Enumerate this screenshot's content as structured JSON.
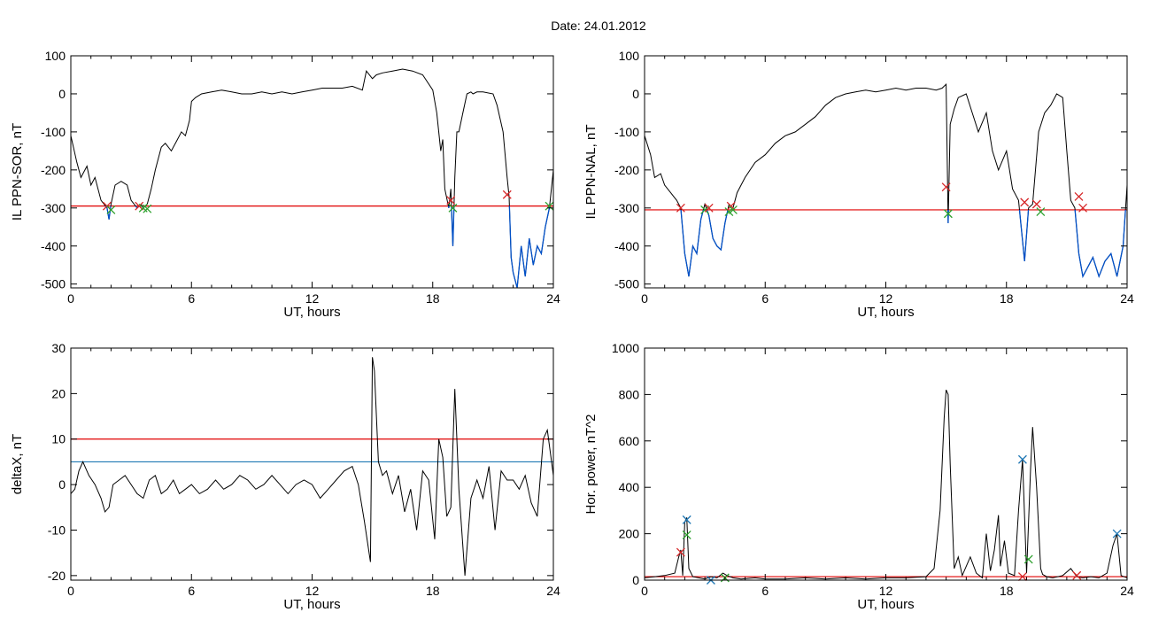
{
  "title": "Date:  24.01.2012",
  "colors": {
    "data_line": "#000000",
    "threshold_red": "#e00000",
    "threshold_blue": "#1f78b4",
    "below_threshold": "#0050c8",
    "marker_red": "#d62728",
    "marker_green": "#2ca02c",
    "marker_blue": "#1f77b4"
  },
  "chart_data": [
    {
      "type": "line",
      "xlabel": "UT, hours",
      "ylabel": "IL PPN-SOR, nT",
      "xlim": [
        0,
        24
      ],
      "ylim": [
        -510,
        100
      ],
      "xticks": [
        0,
        6,
        12,
        18,
        24
      ],
      "yticks": [
        -500,
        -400,
        -300,
        -200,
        -100,
        0,
        100
      ],
      "threshold": -295,
      "series": [
        {
          "x": [
            0,
            0.3,
            0.5,
            0.8,
            1.0,
            1.2,
            1.5,
            1.8,
            1.9,
            2.0,
            2.2,
            2.5,
            2.8,
            3.0,
            3.3,
            3.5,
            3.6,
            3.8,
            4.0,
            4.2,
            4.5,
            4.7,
            5.0,
            5.3,
            5.5,
            5.7,
            5.9,
            6.0,
            6.2,
            6.5,
            7.0,
            7.5,
            8.0,
            8.5,
            9.0,
            9.5,
            10.0,
            10.5,
            11.0,
            11.5,
            12.0,
            12.5,
            13.0,
            13.5,
            14.0,
            14.5,
            14.7,
            15.0,
            15.2,
            15.5,
            16.0,
            16.5,
            17.0,
            17.5,
            18.0,
            18.2,
            18.4,
            18.5,
            18.6,
            18.8,
            18.9,
            19.0,
            19.1,
            19.2,
            19.3,
            19.5,
            19.7,
            19.9,
            20.0,
            20.2,
            20.5,
            21.0,
            21.2,
            21.5,
            21.7,
            21.8,
            21.9,
            22.0,
            22.2,
            22.4,
            22.6,
            22.8,
            23.0,
            23.2,
            23.4,
            23.6,
            23.8,
            24.0
          ],
          "y": [
            -110,
            -180,
            -220,
            -190,
            -240,
            -220,
            -280,
            -300,
            -330,
            -290,
            -240,
            -230,
            -240,
            -280,
            -300,
            -290,
            -300,
            -290,
            -250,
            -200,
            -140,
            -130,
            -150,
            -120,
            -100,
            -110,
            -70,
            -20,
            -10,
            0,
            5,
            10,
            5,
            0,
            0,
            5,
            0,
            5,
            0,
            5,
            10,
            15,
            15,
            15,
            20,
            10,
            60,
            40,
            50,
            55,
            60,
            65,
            60,
            50,
            10,
            -50,
            -150,
            -120,
            -250,
            -300,
            -250,
            -400,
            -220,
            -100,
            -100,
            -50,
            0,
            5,
            0,
            5,
            5,
            0,
            -30,
            -100,
            -220,
            -270,
            -430,
            -470,
            -510,
            -400,
            -480,
            -380,
            -450,
            -400,
            -420,
            -350,
            -300,
            -200
          ],
          "color": "#000000",
          "below_color": "#0050c8"
        }
      ],
      "markers": [
        {
          "x": 1.8,
          "y": -295,
          "color": "#d62728"
        },
        {
          "x": 2.0,
          "y": -305,
          "color": "#2ca02c"
        },
        {
          "x": 3.4,
          "y": -295,
          "color": "#d62728"
        },
        {
          "x": 3.6,
          "y": -300,
          "color": "#2ca02c"
        },
        {
          "x": 3.8,
          "y": -302,
          "color": "#2ca02c"
        },
        {
          "x": 18.9,
          "y": -280,
          "color": "#d62728"
        },
        {
          "x": 19.0,
          "y": -300,
          "color": "#2ca02c"
        },
        {
          "x": 21.7,
          "y": -265,
          "color": "#d62728"
        },
        {
          "x": 23.8,
          "y": -295,
          "color": "#2ca02c"
        }
      ]
    },
    {
      "type": "line",
      "xlabel": "UT, hours",
      "ylabel": "IL PPN-NAL, nT",
      "xlim": [
        0,
        24
      ],
      "ylim": [
        -510,
        100
      ],
      "xticks": [
        0,
        6,
        12,
        18,
        24
      ],
      "yticks": [
        -500,
        -400,
        -300,
        -200,
        -100,
        0,
        100
      ],
      "threshold": -305,
      "series": [
        {
          "x": [
            0,
            0.3,
            0.5,
            0.8,
            1.0,
            1.3,
            1.6,
            1.8,
            2.0,
            2.2,
            2.4,
            2.6,
            2.8,
            3.0,
            3.2,
            3.4,
            3.6,
            3.8,
            4.0,
            4.2,
            4.4,
            4.6,
            5.0,
            5.5,
            6.0,
            6.5,
            7.0,
            7.5,
            8.0,
            8.5,
            9.0,
            9.5,
            10.0,
            10.5,
            11.0,
            11.5,
            12.0,
            12.5,
            13.0,
            13.5,
            14.0,
            14.5,
            14.8,
            15.0,
            15.1,
            15.2,
            15.4,
            15.6,
            16.0,
            16.3,
            16.6,
            17.0,
            17.3,
            17.6,
            18.0,
            18.3,
            18.6,
            18.9,
            19.1,
            19.3,
            19.6,
            19.9,
            20.2,
            20.5,
            20.8,
            21.0,
            21.2,
            21.4,
            21.6,
            21.8,
            22.0,
            22.3,
            22.6,
            22.9,
            23.2,
            23.5,
            23.8,
            24.0
          ],
          "y": [
            -110,
            -160,
            -220,
            -210,
            -240,
            -260,
            -280,
            -300,
            -420,
            -480,
            -400,
            -420,
            -330,
            -290,
            -320,
            -380,
            -400,
            -410,
            -340,
            -290,
            -300,
            -260,
            -220,
            -180,
            -160,
            -130,
            -110,
            -100,
            -80,
            -60,
            -30,
            -10,
            0,
            5,
            10,
            5,
            10,
            15,
            10,
            15,
            15,
            10,
            15,
            25,
            -340,
            -80,
            -40,
            -10,
            0,
            -50,
            -100,
            -50,
            -150,
            -200,
            -150,
            -250,
            -280,
            -440,
            -300,
            -290,
            -100,
            -50,
            -30,
            0,
            -10,
            -150,
            -280,
            -300,
            -420,
            -480,
            -460,
            -430,
            -480,
            -440,
            -420,
            -480,
            -400,
            -240
          ],
          "color": "#000000",
          "below_color": "#0050c8"
        }
      ],
      "markers": [
        {
          "x": 1.8,
          "y": -300,
          "color": "#d62728"
        },
        {
          "x": 3.0,
          "y": -305,
          "color": "#2ca02c"
        },
        {
          "x": 3.2,
          "y": -300,
          "color": "#d62728"
        },
        {
          "x": 4.2,
          "y": -310,
          "color": "#2ca02c"
        },
        {
          "x": 4.3,
          "y": -295,
          "color": "#d62728"
        },
        {
          "x": 4.4,
          "y": -305,
          "color": "#2ca02c"
        },
        {
          "x": 15.0,
          "y": -245,
          "color": "#d62728"
        },
        {
          "x": 15.1,
          "y": -315,
          "color": "#2ca02c"
        },
        {
          "x": 18.9,
          "y": -285,
          "color": "#d62728"
        },
        {
          "x": 19.5,
          "y": -290,
          "color": "#d62728"
        },
        {
          "x": 19.7,
          "y": -310,
          "color": "#2ca02c"
        },
        {
          "x": 21.6,
          "y": -270,
          "color": "#d62728"
        },
        {
          "x": 21.8,
          "y": -300,
          "color": "#d62728"
        }
      ]
    },
    {
      "type": "line",
      "xlabel": "UT, hours",
      "ylabel": "deltaX, nT",
      "xlim": [
        0,
        24
      ],
      "ylim": [
        -21,
        30
      ],
      "xticks": [
        0,
        6,
        12,
        18,
        24
      ],
      "yticks": [
        -20,
        -10,
        0,
        10,
        20,
        30
      ],
      "thresholds": [
        {
          "value": 10,
          "color": "#e00000"
        },
        {
          "value": 5,
          "color": "#1f78b4"
        }
      ],
      "series": [
        {
          "x": [
            0,
            0.2,
            0.4,
            0.6,
            0.9,
            1.2,
            1.5,
            1.7,
            1.9,
            2.1,
            2.4,
            2.7,
            3.0,
            3.3,
            3.6,
            3.9,
            4.2,
            4.5,
            4.8,
            5.1,
            5.4,
            5.7,
            6.0,
            6.4,
            6.8,
            7.2,
            7.6,
            8.0,
            8.4,
            8.8,
            9.2,
            9.6,
            10.0,
            10.4,
            10.8,
            11.2,
            11.6,
            12.0,
            12.4,
            12.8,
            13.2,
            13.6,
            14.0,
            14.3,
            14.6,
            14.9,
            15.0,
            15.1,
            15.3,
            15.5,
            15.7,
            16.0,
            16.3,
            16.6,
            16.9,
            17.2,
            17.5,
            17.8,
            18.1,
            18.3,
            18.5,
            18.7,
            18.9,
            19.1,
            19.3,
            19.6,
            19.9,
            20.2,
            20.5,
            20.8,
            21.1,
            21.4,
            21.7,
            22.0,
            22.3,
            22.6,
            22.9,
            23.2,
            23.5,
            23.7,
            24.0
          ],
          "y": [
            -2,
            -1,
            3,
            5,
            2,
            0,
            -3,
            -6,
            -5,
            0,
            1,
            2,
            0,
            -2,
            -3,
            1,
            2,
            -2,
            -1,
            1,
            -2,
            -1,
            0,
            -2,
            -1,
            1,
            -1,
            0,
            2,
            1,
            -1,
            0,
            2,
            0,
            -2,
            0,
            1,
            0,
            -3,
            -1,
            1,
            3,
            4,
            0,
            -8,
            -17,
            28,
            25,
            5,
            2,
            3,
            -2,
            2,
            -6,
            -1,
            -10,
            3,
            1,
            -12,
            10,
            6,
            -7,
            -5,
            21,
            -1,
            -20,
            -3,
            1,
            -3,
            4,
            -10,
            3,
            1,
            1,
            -1,
            2,
            -4,
            -7,
            10,
            12,
            2
          ],
          "color": "#000000"
        }
      ],
      "markers": []
    },
    {
      "type": "line",
      "xlabel": "UT, hours",
      "ylabel": "Hor. power, nT^2",
      "xlim": [
        0,
        24
      ],
      "ylim": [
        0,
        1000
      ],
      "xticks": [
        0,
        6,
        12,
        18,
        24
      ],
      "yticks": [
        0,
        200,
        400,
        600,
        800,
        1000
      ],
      "threshold": 15,
      "series": [
        {
          "x": [
            0,
            0.5,
            1.0,
            1.5,
            1.7,
            1.8,
            1.9,
            2.0,
            2.1,
            2.2,
            2.4,
            2.7,
            3.0,
            3.3,
            3.6,
            3.9,
            4.1,
            4.4,
            4.8,
            5.5,
            6.0,
            7.0,
            8.0,
            9.0,
            10.0,
            11.0,
            12.0,
            13.0,
            14.0,
            14.4,
            14.7,
            14.9,
            15.0,
            15.1,
            15.2,
            15.4,
            15.6,
            15.8,
            16.2,
            16.5,
            16.8,
            17.0,
            17.2,
            17.4,
            17.6,
            17.7,
            17.9,
            18.1,
            18.4,
            18.6,
            18.8,
            19.0,
            19.2,
            19.3,
            19.5,
            19.7,
            19.8,
            20.0,
            20.3,
            20.8,
            21.2,
            21.5,
            21.8,
            22.2,
            22.6,
            23.0,
            23.3,
            23.5,
            23.7,
            24.0
          ],
          "y": [
            10,
            15,
            20,
            30,
            100,
            130,
            20,
            250,
            270,
            50,
            15,
            10,
            5,
            15,
            10,
            30,
            20,
            10,
            5,
            10,
            5,
            5,
            10,
            5,
            10,
            5,
            10,
            10,
            15,
            50,
            300,
            700,
            820,
            800,
            500,
            50,
            100,
            20,
            100,
            30,
            10,
            200,
            40,
            130,
            280,
            60,
            170,
            30,
            20,
            300,
            520,
            30,
            480,
            660,
            400,
            50,
            25,
            15,
            10,
            20,
            50,
            15,
            10,
            15,
            10,
            30,
            150,
            200,
            20,
            10
          ],
          "color": "#000000"
        }
      ],
      "markers": [
        {
          "x": 1.8,
          "y": 120,
          "color": "#d62728"
        },
        {
          "x": 2.1,
          "y": 260,
          "color": "#1f77b4"
        },
        {
          "x": 2.1,
          "y": 195,
          "color": "#2ca02c"
        },
        {
          "x": 3.3,
          "y": 0,
          "color": "#1f77b4"
        },
        {
          "x": 4.0,
          "y": 10,
          "color": "#2ca02c"
        },
        {
          "x": 18.8,
          "y": 520,
          "color": "#1f77b4"
        },
        {
          "x": 18.8,
          "y": 15,
          "color": "#d62728"
        },
        {
          "x": 19.1,
          "y": 90,
          "color": "#2ca02c"
        },
        {
          "x": 21.5,
          "y": 20,
          "color": "#d62728"
        },
        {
          "x": 23.5,
          "y": 200,
          "color": "#1f77b4"
        }
      ]
    }
  ]
}
